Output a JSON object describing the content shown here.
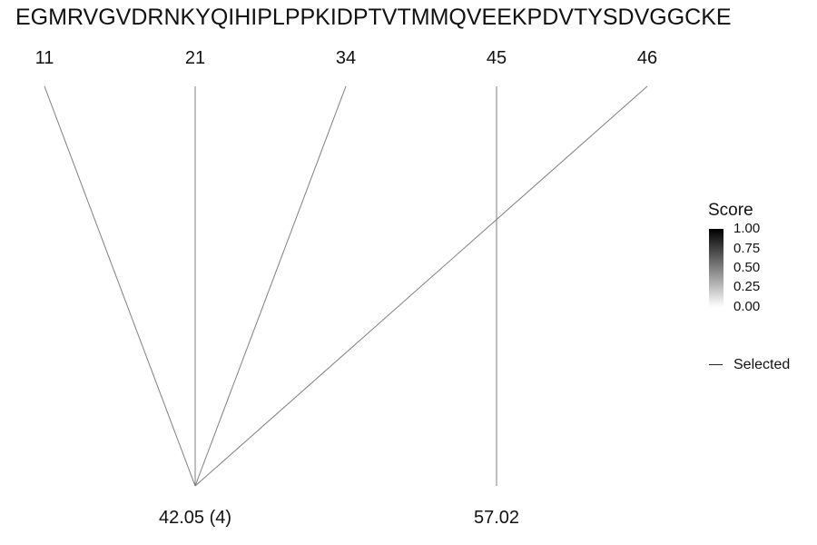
{
  "sequence": "EGMRVGVDRNKYQIHIPLPPKIDPTVTMMQVEEKPDVTYSDVGGCKE",
  "top_labels": [
    "11",
    "21",
    "34",
    "45",
    "46"
  ],
  "bottom_labels": [
    "42.05 (4)",
    "57.02"
  ],
  "connections": [
    {
      "from": "11",
      "to": "42.05 (4)"
    },
    {
      "from": "21",
      "to": "42.05 (4)"
    },
    {
      "from": "34",
      "to": "42.05 (4)"
    },
    {
      "from": "46",
      "to": "42.05 (4)"
    },
    {
      "from": "45",
      "to": "57.02"
    }
  ],
  "legend": {
    "title": "Score",
    "ticks": [
      "1.00",
      "0.75",
      "0.50",
      "0.25",
      "0.00"
    ],
    "selected_label": "Selected"
  },
  "colors": {
    "line": "#7f7f7f",
    "gradient_high": "#000000",
    "gradient_low": "#ffffff"
  }
}
